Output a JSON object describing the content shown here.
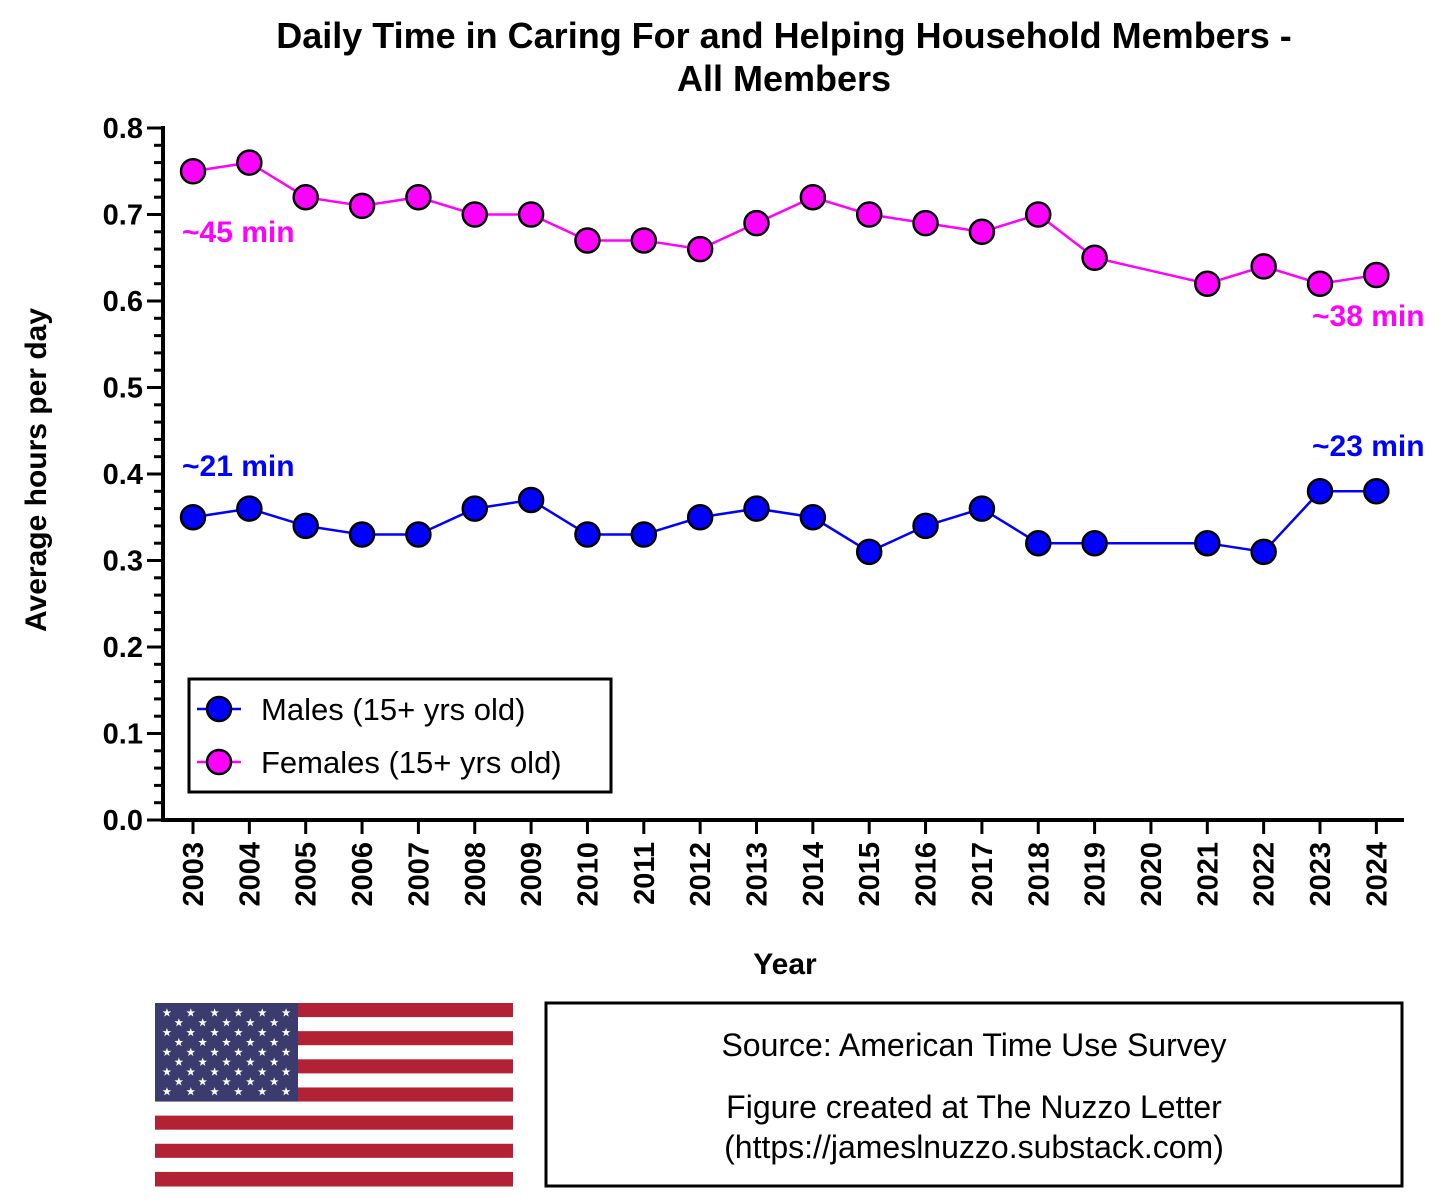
{
  "chart_data": {
    "type": "line",
    "title_lines": [
      "Daily Time in Caring For and Helping Household Members -",
      "All Members"
    ],
    "xlabel": "Year",
    "ylabel": "Average hours per day",
    "ylim": [
      0,
      0.8
    ],
    "yticks": [
      "0.0",
      "0.1",
      "0.2",
      "0.3",
      "0.4",
      "0.5",
      "0.6",
      "0.7",
      "0.8"
    ],
    "categories": [
      "2003",
      "2004",
      "2005",
      "2006",
      "2007",
      "2008",
      "2009",
      "2010",
      "2011",
      "2012",
      "2013",
      "2014",
      "2015",
      "2016",
      "2017",
      "2018",
      "2019",
      "2020",
      "2021",
      "2022",
      "2023",
      "2024"
    ],
    "series": [
      {
        "name": "Males (15+ yrs old)",
        "color": "#0000ff",
        "values": [
          0.35,
          0.36,
          0.34,
          0.33,
          0.33,
          0.36,
          0.37,
          0.33,
          0.33,
          0.35,
          0.36,
          0.35,
          0.31,
          0.34,
          0.36,
          0.32,
          0.32,
          null,
          0.32,
          0.31,
          0.38,
          0.38
        ]
      },
      {
        "name": "Females (15+ yrs old)",
        "color": "#ff00ff",
        "values": [
          0.75,
          0.76,
          0.72,
          0.71,
          0.72,
          0.7,
          0.7,
          0.67,
          0.67,
          0.66,
          0.69,
          0.72,
          0.7,
          0.69,
          0.68,
          0.7,
          0.65,
          null,
          0.62,
          0.64,
          0.62,
          0.63
        ]
      }
    ],
    "annotations": [
      {
        "text": "~45 min",
        "series": "Females (15+ yrs old)",
        "color": "#ff00ff"
      },
      {
        "text": "~38 min",
        "series": "Females (15+ yrs old)",
        "color": "#ff00ff"
      },
      {
        "text": "~21 min",
        "series": "Males (15+ yrs old)",
        "color": "#0000ff"
      },
      {
        "text": "~23 min",
        "series": "Males (15+ yrs old)",
        "color": "#0000ff"
      }
    ],
    "legend_position": "bottom-left",
    "grid": false
  },
  "source_box": {
    "line1": "Source: American Time Use Survey",
    "line2": "Figure created at The Nuzzo Letter",
    "line3": "(https://jameslnuzzo.substack.com)"
  },
  "flag": {
    "icon": "us-flag-icon",
    "colors": {
      "red": "#b22234",
      "white": "#ffffff",
      "blue": "#3c3b6e"
    }
  }
}
